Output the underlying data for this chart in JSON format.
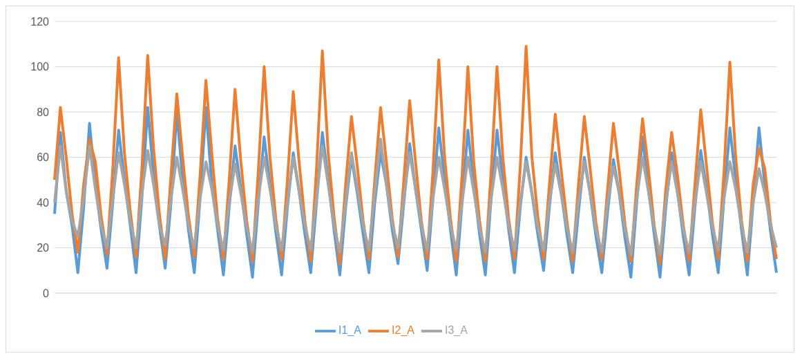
{
  "chart_data": {
    "type": "line",
    "categories": [
      null,
      null,
      null,
      null,
      null,
      null,
      null,
      null,
      null,
      null,
      null,
      null,
      null,
      null,
      null,
      null,
      null,
      null,
      null,
      null,
      null,
      null,
      null,
      null,
      null,
      null,
      null,
      null,
      null,
      null,
      null,
      null,
      null,
      null,
      null,
      null,
      null,
      null,
      null,
      null,
      null,
      null,
      null,
      null,
      null,
      null,
      null,
      null,
      null,
      null,
      null,
      null,
      null,
      null,
      null,
      null,
      null,
      null,
      null,
      null,
      null,
      null,
      null,
      null,
      null,
      null,
      null,
      null,
      null,
      null,
      null,
      null,
      null,
      null,
      null,
      null,
      null,
      null,
      null,
      null,
      null,
      null,
      null,
      null,
      null,
      null,
      null,
      null,
      null,
      null,
      null,
      null,
      null,
      null,
      null,
      null,
      null,
      null,
      null,
      null,
      null,
      null,
      null,
      null,
      null,
      null,
      null,
      null,
      null,
      null,
      null,
      null,
      null,
      null,
      null,
      null,
      null,
      null,
      null,
      null,
      null,
      null,
      null,
      null,
      null
    ],
    "series": [
      {
        "name": "I1_A",
        "color": "#5b9bd5",
        "values": [
          35,
          71,
          45,
          30,
          9,
          38,
          75,
          48,
          28,
          11,
          40,
          72,
          50,
          30,
          9,
          42,
          82,
          52,
          30,
          11,
          40,
          80,
          50,
          28,
          9,
          42,
          82,
          48,
          28,
          8,
          38,
          65,
          46,
          26,
          7,
          40,
          69,
          48,
          27,
          8,
          38,
          62,
          45,
          26,
          9,
          40,
          71,
          50,
          28,
          8,
          38,
          60,
          44,
          26,
          9,
          40,
          62,
          48,
          28,
          13,
          40,
          66,
          46,
          28,
          10,
          42,
          73,
          50,
          28,
          8,
          40,
          72,
          48,
          26,
          8,
          42,
          72,
          50,
          28,
          9,
          38,
          60,
          44,
          26,
          10,
          38,
          62,
          45,
          26,
          9,
          36,
          60,
          44,
          25,
          9,
          36,
          59,
          44,
          24,
          7,
          40,
          69,
          46,
          26,
          7,
          38,
          62,
          45,
          25,
          8,
          38,
          63,
          46,
          26,
          9,
          42,
          73,
          50,
          28,
          8,
          40,
          73,
          48,
          27,
          9
        ]
      },
      {
        "name": "I2_A",
        "color": "#ed7d31",
        "values": [
          50,
          82,
          60,
          35,
          18,
          48,
          68,
          58,
          34,
          17,
          55,
          104,
          62,
          36,
          16,
          55,
          105,
          64,
          35,
          15,
          52,
          88,
          60,
          34,
          16,
          52,
          94,
          62,
          33,
          15,
          50,
          90,
          58,
          32,
          14,
          54,
          100,
          60,
          33,
          15,
          50,
          89,
          58,
          32,
          14,
          55,
          107,
          62,
          34,
          13,
          48,
          78,
          56,
          32,
          15,
          50,
          82,
          58,
          33,
          16,
          50,
          85,
          58,
          32,
          15,
          54,
          103,
          60,
          33,
          14,
          52,
          100,
          58,
          32,
          14,
          54,
          100,
          60,
          33,
          15,
          56,
          109,
          60,
          34,
          15,
          48,
          79,
          55,
          32,
          14,
          48,
          78,
          55,
          31,
          15,
          46,
          75,
          54,
          30,
          14,
          48,
          77,
          55,
          30,
          13,
          46,
          71,
          52,
          30,
          14,
          48,
          81,
          56,
          31,
          15,
          54,
          102,
          60,
          32,
          14,
          48,
          64,
          55,
          31,
          15
        ]
      },
      {
        "name": "I3_A",
        "color": "#a5a5a5",
        "values": [
          40,
          65,
          45,
          32,
          25,
          42,
          65,
          46,
          30,
          20,
          42,
          62,
          48,
          32,
          20,
          44,
          63,
          48,
          30,
          21,
          42,
          60,
          46,
          30,
          20,
          42,
          58,
          46,
          30,
          19,
          40,
          57,
          44,
          29,
          18,
          42,
          60,
          46,
          30,
          19,
          40,
          60,
          45,
          30,
          19,
          42,
          65,
          48,
          30,
          18,
          40,
          62,
          46,
          30,
          19,
          44,
          68,
          48,
          31,
          20,
          42,
          62,
          46,
          30,
          19,
          42,
          60,
          46,
          30,
          19,
          40,
          60,
          45,
          29,
          18,
          42,
          60,
          46,
          30,
          19,
          40,
          58,
          44,
          29,
          19,
          40,
          57,
          44,
          29,
          18,
          40,
          58,
          44,
          28,
          18,
          40,
          56,
          44,
          28,
          17,
          42,
          60,
          45,
          29,
          17,
          40,
          58,
          44,
          28,
          18,
          40,
          58,
          44,
          29,
          19,
          42,
          58,
          46,
          30,
          18,
          40,
          55,
          44,
          30,
          20
        ]
      }
    ],
    "ylim": [
      0,
      120
    ],
    "yticks": [
      0,
      20,
      40,
      60,
      80,
      100,
      120
    ],
    "grid": "y",
    "legend": "bottom",
    "marker": "none",
    "line_style": "solid"
  }
}
